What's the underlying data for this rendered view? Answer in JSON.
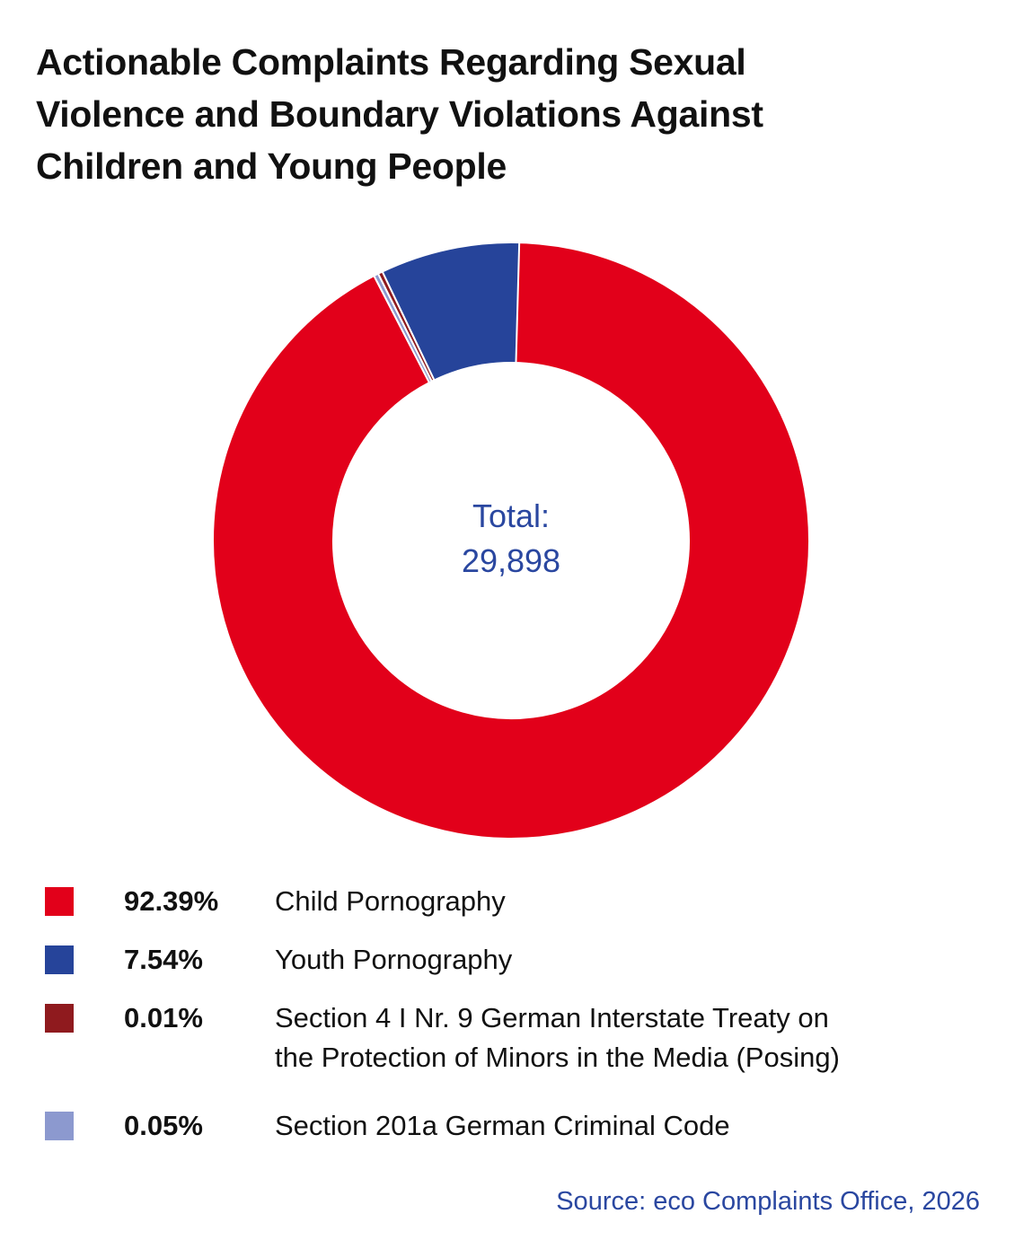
{
  "title_lines": [
    "Actionable Complaints Regarding Sexual",
    "Violence and Boundary Violations Against",
    "Children and Young People"
  ],
  "center": {
    "line1": "Total:",
    "line2": "29,898"
  },
  "source": "Source: eco Complaints Office, 2026",
  "colors": {
    "text": "#111111",
    "accent": "#2a47a0"
  },
  "chart_data": {
    "type": "pie",
    "donut": true,
    "total": "29,898",
    "slices": [
      {
        "label": "Child Pornography",
        "value": 92.39,
        "display": "92.39%",
        "color": "#e2001a"
      },
      {
        "label": "Youth Pornography",
        "value": 7.54,
        "display": "7.54%",
        "color": "#26449a"
      },
      {
        "label": "Section 4 I Nr. 9 German Interstate Treaty on the Protection of Minors in the Media (Posing)",
        "value": 0.01,
        "display": "0.01%",
        "color": "#8f1a1e"
      },
      {
        "label": "Section 201a German Criminal Code",
        "value": 0.05,
        "display": "0.05%",
        "color": "#8c99cf"
      }
    ],
    "legend": [
      {
        "display": "92.39%",
        "lines": [
          "Child Pornography"
        ],
        "color": "#e2001a"
      },
      {
        "display": "7.54%",
        "lines": [
          "Youth Pornography"
        ],
        "color": "#26449a"
      },
      {
        "display": "0.01%",
        "lines": [
          "Section 4 I Nr. 9 German Interstate Treaty on",
          "the Protection of Minors in the Media (Posing)"
        ],
        "color": "#8f1a1e"
      },
      {
        "display": "0.05%",
        "lines": [
          "Section 201a German Criminal Code"
        ],
        "color": "#8c99cf"
      }
    ],
    "legend_placement": "bottom"
  }
}
